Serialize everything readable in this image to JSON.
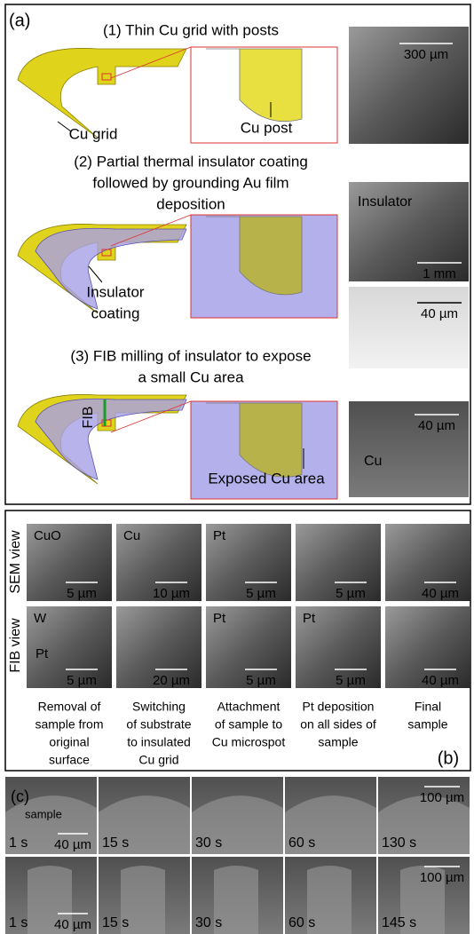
{
  "panel_a": {
    "label": "(a)",
    "step1": {
      "title": "(1) Thin Cu grid with posts",
      "grid_label": "Cu grid",
      "post_label": "Cu post",
      "scale": "300 µm"
    },
    "step2": {
      "title_lines": [
        "(2) Partial thermal insulator coating",
        "followed by grounding Au film",
        "deposition"
      ],
      "coating_label_lines": [
        "Insulator",
        "coating"
      ],
      "image1_label": "Insulator",
      "image1_scale": "1 mm",
      "image2_scale": "40 µm"
    },
    "step3": {
      "title_lines": [
        "(3) FIB milling of insulator to expose",
        "a small Cu area"
      ],
      "beam_label": "FIB",
      "exposed_label": "Exposed Cu area",
      "image_label": "Cu",
      "image_scale": "40 µm"
    }
  },
  "panel_b": {
    "label": "(b)",
    "row_labels": [
      "SEM view",
      "FIB view"
    ],
    "sem": [
      {
        "labels": [
          "CuO"
        ],
        "scale": "5 µm"
      },
      {
        "labels": [
          "Cu"
        ],
        "scale": "10 µm"
      },
      {
        "labels": [
          "Pt"
        ],
        "scale": "5 µm"
      },
      {
        "labels": [],
        "scale": "5 µm"
      },
      {
        "labels": [],
        "scale": "40 µm"
      }
    ],
    "fib": [
      {
        "labels": [
          "W",
          "Pt"
        ],
        "scale": "5 µm"
      },
      {
        "labels": [],
        "scale": "20 µm"
      },
      {
        "labels": [
          "Pt"
        ],
        "scale": "5 µm"
      },
      {
        "labels": [
          "Pt"
        ],
        "scale": "5 µm"
      },
      {
        "labels": [],
        "scale": "40 µm"
      }
    ],
    "captions": [
      [
        "Removal of",
        "sample from",
        "original",
        "surface"
      ],
      [
        "Switching",
        "of substrate",
        "to insulated",
        "Cu grid"
      ],
      [
        "Attachment",
        "of sample to",
        "Cu microspot"
      ],
      [
        "Pt deposition",
        "on all sides of",
        "sample"
      ],
      [
        "Final",
        "sample"
      ]
    ]
  },
  "panel_c": {
    "label": "(c)",
    "sample_label": "sample",
    "rows": [
      {
        "times": [
          "1 s",
          "15 s",
          "30 s",
          "60 s",
          "130 s"
        ],
        "scale_small": "40 µm",
        "scale_large": "100 µm"
      },
      {
        "times": [
          "1 s",
          "15 s",
          "30 s",
          "60 s",
          "145 s"
        ],
        "scale_small": "40 µm",
        "scale_large": "100 µm"
      }
    ]
  }
}
